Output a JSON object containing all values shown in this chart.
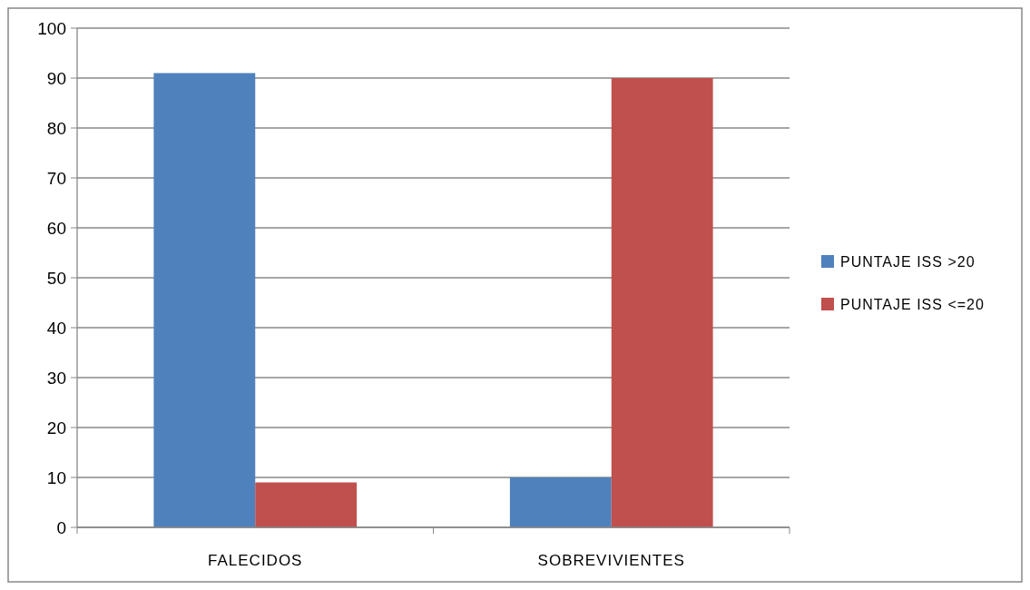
{
  "chart_data": {
    "type": "bar",
    "categories": [
      "FALECIDOS",
      "SOBREVIVIENTES"
    ],
    "series": [
      {
        "name": "PUNTAJE ISS >20",
        "color": "#4f81bd",
        "values": [
          91,
          10
        ]
      },
      {
        "name": "PUNTAJE ISS <=20",
        "color": "#c0504d",
        "values": [
          9,
          90
        ]
      }
    ],
    "ylim": [
      0,
      100
    ],
    "yticks": [
      0,
      10,
      20,
      30,
      40,
      50,
      60,
      70,
      80,
      90,
      100
    ],
    "grid": "y",
    "legend": "right"
  }
}
